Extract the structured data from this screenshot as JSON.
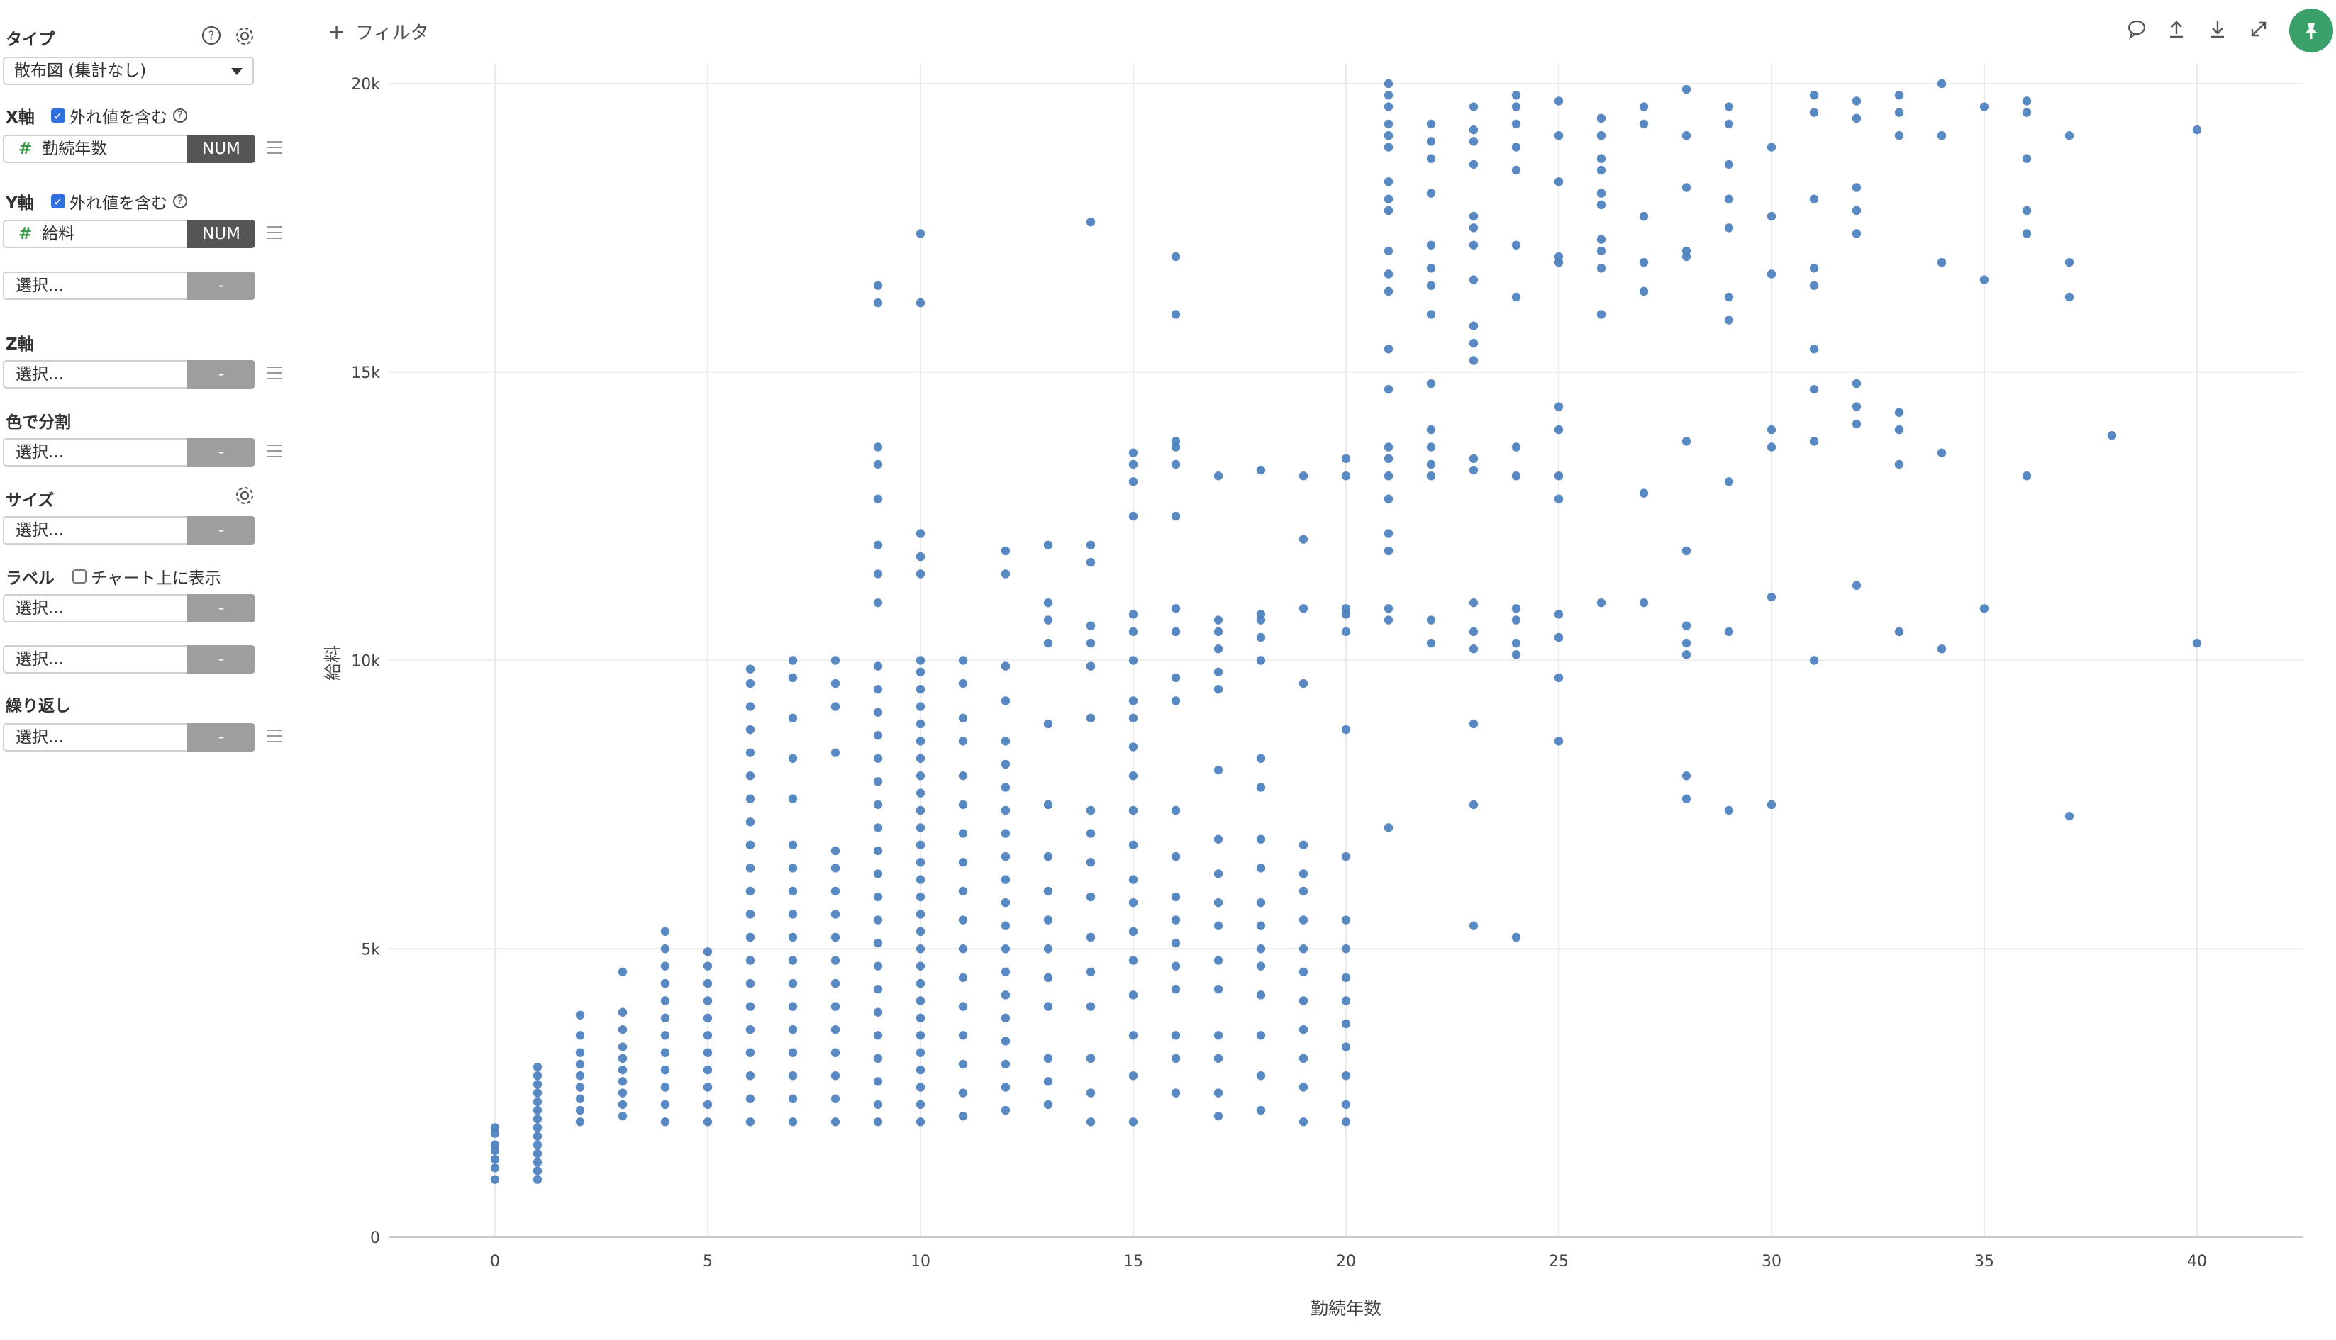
{
  "sidebar": {
    "type": {
      "label": "タイプ",
      "value": "散布図 (集計なし)"
    },
    "x_axis": {
      "label": "X軸",
      "include_outliers": "外れ値を含む",
      "field": "勤続年数",
      "field_type": "NUM"
    },
    "y_axis": {
      "label": "Y軸",
      "include_outliers": "外れ値を含む",
      "field": "給料",
      "field_type": "NUM",
      "extra_placeholder": "選択...",
      "extra_type": "-"
    },
    "z_axis": {
      "label": "Z軸",
      "placeholder": "選択...",
      "type": "-"
    },
    "color": {
      "label": "色で分割",
      "placeholder": "選択...",
      "type": "-"
    },
    "size": {
      "label": "サイズ",
      "placeholder": "選択...",
      "type": "-"
    },
    "label": {
      "label": "ラベル",
      "show_on_chart": "チャート上に表示",
      "placeholder": "選択...",
      "type": "-",
      "placeholder2": "選択...",
      "type2": "-"
    },
    "repeat": {
      "label": "繰り返し",
      "placeholder": "選択...",
      "type": "-"
    }
  },
  "toolbar": {
    "filter_label": "フィルタ",
    "icons": [
      "comment-icon",
      "upload-icon",
      "download-icon",
      "expand-icon",
      "pin-icon"
    ]
  },
  "colors": {
    "point": "#4a7fbd",
    "pin": "#3aa06a",
    "checkbox": "#2f6fdd"
  },
  "chart_data": {
    "type": "scatter",
    "xlabel": "勤続年数",
    "ylabel": "給料",
    "xlim": [
      -2.5,
      42.5
    ],
    "ylim": [
      0,
      20000
    ],
    "xticks": [
      0,
      5,
      10,
      15,
      20,
      25,
      30,
      35,
      40
    ],
    "yticks": [
      0,
      5000,
      10000,
      15000,
      20000
    ],
    "ytick_labels": [
      "0",
      "5k",
      "10k",
      "15k",
      "20k"
    ],
    "grid": true,
    "legend": "none",
    "columns": [
      {
        "x": 0,
        "y": [
          1000,
          1200,
          1350,
          1500,
          1600,
          1800,
          1900
        ]
      },
      {
        "x": 1,
        "y": [
          1000,
          1150,
          1300,
          1450,
          1600,
          1750,
          1900,
          2050,
          2200,
          2350,
          2500,
          2650,
          2800,
          2950
        ]
      },
      {
        "x": 2,
        "y": [
          2000,
          2200,
          2400,
          2600,
          2800,
          3000,
          3200,
          3500,
          3850
        ]
      },
      {
        "x": 3,
        "y": [
          2100,
          2300,
          2500,
          2700,
          2900,
          3100,
          3300,
          3600,
          3900,
          4600
        ]
      },
      {
        "x": 4,
        "y": [
          2000,
          2300,
          2600,
          2900,
          3200,
          3500,
          3800,
          4100,
          4400,
          4700,
          5000,
          5300
        ]
      },
      {
        "x": 5,
        "y": [
          2000,
          2300,
          2600,
          2900,
          3200,
          3500,
          3800,
          4100,
          4400,
          4700,
          4950
        ]
      },
      {
        "x": 6,
        "y": [
          2000,
          2400,
          2800,
          3200,
          3600,
          4000,
          4400,
          4800,
          5200,
          5600,
          6000,
          6400,
          6800,
          7200,
          7600,
          8000,
          8400,
          8800,
          9200,
          9600,
          9850
        ]
      },
      {
        "x": 7,
        "y": [
          2000,
          2400,
          2800,
          3200,
          3600,
          4000,
          4400,
          4800,
          5200,
          5600,
          6000,
          6400,
          6800,
          7600,
          8300,
          9000,
          9700,
          10000
        ]
      },
      {
        "x": 8,
        "y": [
          2000,
          2400,
          2800,
          3200,
          3600,
          4000,
          4400,
          4800,
          5200,
          5600,
          6000,
          6400,
          6700,
          8400,
          9200,
          9600,
          10000
        ]
      },
      {
        "x": 9,
        "y": [
          2000,
          2300,
          2700,
          3100,
          3500,
          3900,
          4300,
          4700,
          5100,
          5500,
          5900,
          6300,
          6700,
          7100,
          7500,
          7900,
          8300,
          8700,
          9100,
          9500,
          9900,
          11000,
          11500,
          12000,
          12800,
          13400,
          13700,
          16200,
          16500
        ]
      },
      {
        "x": 10,
        "y": [
          2000,
          2300,
          2600,
          2900,
          3200,
          3500,
          3800,
          4100,
          4400,
          4700,
          5000,
          5300,
          5600,
          5900,
          6200,
          6500,
          6800,
          7100,
          7400,
          7700,
          8000,
          8300,
          8600,
          8900,
          9200,
          9500,
          9800,
          10000,
          11500,
          11800,
          12200,
          16200,
          17400
        ]
      },
      {
        "x": 11,
        "y": [
          2100,
          2500,
          3000,
          3500,
          4000,
          4500,
          5000,
          5500,
          6000,
          6500,
          7000,
          7500,
          8000,
          8600,
          9000,
          9600,
          10000
        ]
      },
      {
        "x": 12,
        "y": [
          2200,
          2600,
          3000,
          3400,
          3800,
          4200,
          4600,
          5000,
          5400,
          5800,
          6200,
          6600,
          7000,
          7400,
          7800,
          8200,
          8600,
          9300,
          9900,
          11500,
          11900
        ]
      },
      {
        "x": 13,
        "y": [
          2300,
          2700,
          3100,
          4000,
          4500,
          5000,
          5500,
          6000,
          6600,
          7500,
          8900,
          10300,
          10700,
          11000,
          12000
        ]
      },
      {
        "x": 14,
        "y": [
          2000,
          2500,
          3100,
          4000,
          4600,
          5200,
          5900,
          6500,
          7000,
          7400,
          9000,
          9900,
          10300,
          10600,
          11700,
          12000,
          17600
        ]
      },
      {
        "x": 15,
        "y": [
          2000,
          2800,
          3500,
          4200,
          4800,
          5300,
          5800,
          6200,
          6800,
          7400,
          8000,
          8500,
          9000,
          9300,
          10000,
          10500,
          10800,
          12500,
          13100,
          13400,
          13600
        ]
      },
      {
        "x": 16,
        "y": [
          2500,
          3100,
          3500,
          4300,
          4700,
          5100,
          5500,
          5900,
          6600,
          7400,
          9300,
          9700,
          10500,
          10900,
          12500,
          13400,
          13700,
          13800,
          16000,
          17000
        ]
      },
      {
        "x": 17,
        "y": [
          2100,
          2500,
          3100,
          3500,
          4300,
          4800,
          5400,
          5800,
          6300,
          6900,
          8100,
          9500,
          9800,
          10200,
          10500,
          10700,
          13200
        ]
      },
      {
        "x": 18,
        "y": [
          2200,
          2800,
          3500,
          4200,
          4700,
          5000,
          5400,
          5800,
          6400,
          6900,
          7800,
          8300,
          10000,
          10400,
          10700,
          10800,
          13300
        ]
      },
      {
        "x": 19,
        "y": [
          2000,
          2600,
          3100,
          3600,
          4100,
          4600,
          5000,
          5500,
          6000,
          6300,
          6800,
          9600,
          10900,
          12100,
          13200
        ]
      },
      {
        "x": 20,
        "y": [
          2000,
          2300,
          2800,
          3300,
          3700,
          4100,
          4500,
          5000,
          5500,
          6600,
          8800,
          10500,
          10800,
          10900,
          13200,
          13500
        ]
      },
      {
        "x": 21,
        "y": [
          7100,
          10700,
          10900,
          11900,
          12200,
          12800,
          13200,
          13500,
          13700,
          14700,
          15400,
          16400,
          16700,
          17100,
          17800,
          18000,
          18300,
          18900,
          19100,
          19300,
          19600,
          19800,
          20000
        ]
      },
      {
        "x": 22,
        "y": [
          10300,
          10700,
          13200,
          13400,
          13700,
          14000,
          14800,
          16000,
          16500,
          16800,
          17200,
          18100,
          18700,
          19000,
          19300
        ]
      },
      {
        "x": 23,
        "y": [
          5400,
          7500,
          8900,
          10200,
          10500,
          11000,
          13300,
          13500,
          15200,
          15500,
          15800,
          16600,
          17200,
          17500,
          17700,
          18600,
          19000,
          19200,
          19600
        ]
      },
      {
        "x": 24,
        "y": [
          5200,
          10100,
          10300,
          10700,
          10900,
          13200,
          13700,
          16300,
          17200,
          18500,
          18900,
          19300,
          19600,
          19800
        ]
      },
      {
        "x": 25,
        "y": [
          8600,
          9700,
          10400,
          10800,
          12800,
          13200,
          14000,
          14400,
          16900,
          17000,
          18300,
          19100,
          19700
        ]
      },
      {
        "x": 26,
        "y": [
          11000,
          16000,
          16800,
          17100,
          17300,
          17900,
          18100,
          18500,
          18700,
          19100,
          19400
        ]
      },
      {
        "x": 27,
        "y": [
          11000,
          12900,
          16400,
          16900,
          17700,
          19300,
          19600
        ]
      },
      {
        "x": 28,
        "y": [
          7600,
          8000,
          10100,
          10300,
          10600,
          11900,
          13800,
          17000,
          17100,
          18200,
          19100,
          19900
        ]
      },
      {
        "x": 29,
        "y": [
          7400,
          10500,
          13100,
          15900,
          16300,
          17500,
          18000,
          18600,
          19300,
          19600
        ]
      },
      {
        "x": 30,
        "y": [
          7500,
          11100,
          13700,
          14000,
          16700,
          17700,
          18900
        ]
      },
      {
        "x": 31,
        "y": [
          10000,
          13800,
          14700,
          15400,
          16500,
          16800,
          18000,
          19500,
          19800
        ]
      },
      {
        "x": 32,
        "y": [
          11300,
          14100,
          14400,
          14800,
          17400,
          17800,
          18200,
          19400,
          19700
        ]
      },
      {
        "x": 33,
        "y": [
          10500,
          13400,
          14000,
          14300,
          19100,
          19500,
          19800
        ]
      },
      {
        "x": 34,
        "y": [
          10200,
          13600,
          16900,
          19100,
          20000
        ]
      },
      {
        "x": 35,
        "y": [
          10900,
          16600,
          19600
        ]
      },
      {
        "x": 36,
        "y": [
          13200,
          17400,
          17800,
          18700,
          19500,
          19700
        ]
      },
      {
        "x": 37,
        "y": [
          7300,
          16300,
          16900,
          19100
        ]
      },
      {
        "x": 38,
        "y": [
          13900
        ]
      },
      {
        "x": 40,
        "y": [
          10300,
          19200
        ]
      }
    ]
  }
}
